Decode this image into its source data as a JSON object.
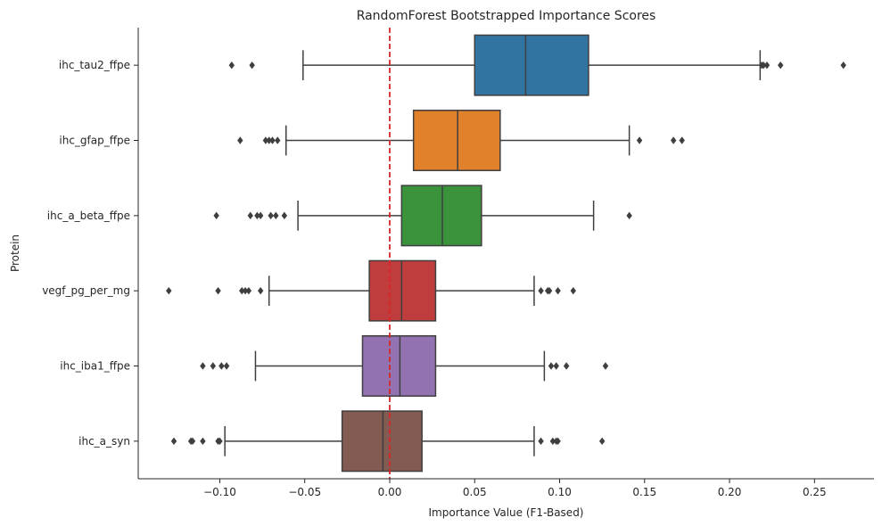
{
  "chart_data": {
    "type": "boxplot",
    "orientation": "horizontal",
    "title": "RandomForest Bootstrapped Importance Scores",
    "xlabel": "Importance Value (F1-Based)",
    "ylabel": "Protein",
    "xlim": [
      -0.148,
      0.285
    ],
    "x_ticks": [
      -0.1,
      -0.05,
      0.0,
      0.05,
      0.1,
      0.15,
      0.2,
      0.25
    ],
    "x_tick_labels": [
      "−0.10",
      "−0.05",
      "0.00",
      "0.05",
      "0.10",
      "0.15",
      "0.20",
      "0.25"
    ],
    "grid": false,
    "reference_line": {
      "x": 0.0,
      "color": "#d62728",
      "style": "dashed"
    },
    "categories": [
      "ihc_tau2_ffpe",
      "ihc_gfap_ffpe",
      "ihc_a_beta_ffpe",
      "vegf_pg_per_mg",
      "ihc_iba1_ffpe",
      "ihc_a_syn"
    ],
    "series": [
      {
        "category": "ihc_tau2_ffpe",
        "color": "#3274a1",
        "whisker_low": -0.051,
        "q1": 0.05,
        "median": 0.08,
        "q3": 0.117,
        "whisker_high": 0.218,
        "outliers": [
          -0.093,
          -0.081,
          0.219,
          0.22,
          0.222,
          0.23,
          0.267
        ]
      },
      {
        "category": "ihc_gfap_ffpe",
        "color": "#e1812c",
        "whisker_low": -0.061,
        "q1": 0.014,
        "median": 0.04,
        "q3": 0.065,
        "whisker_high": 0.141,
        "outliers": [
          -0.088,
          -0.073,
          -0.071,
          -0.069,
          -0.066,
          0.147,
          0.167,
          0.172
        ]
      },
      {
        "category": "ihc_a_beta_ffpe",
        "color": "#3a923a",
        "whisker_low": -0.054,
        "q1": 0.007,
        "median": 0.031,
        "q3": 0.054,
        "whisker_high": 0.12,
        "outliers": [
          -0.102,
          -0.082,
          -0.078,
          -0.076,
          -0.07,
          -0.067,
          -0.062,
          0.141
        ]
      },
      {
        "category": "vegf_pg_per_mg",
        "color": "#c03d3e",
        "whisker_low": -0.071,
        "q1": -0.012,
        "median": 0.007,
        "q3": 0.027,
        "whisker_high": 0.085,
        "outliers": [
          -0.13,
          -0.101,
          -0.087,
          -0.085,
          -0.083,
          -0.076,
          0.089,
          0.093,
          0.094,
          0.099,
          0.108
        ]
      },
      {
        "category": "ihc_iba1_ffpe",
        "color": "#9372b2",
        "whisker_low": -0.079,
        "q1": -0.016,
        "median": 0.006,
        "q3": 0.027,
        "whisker_high": 0.091,
        "outliers": [
          -0.11,
          -0.104,
          -0.099,
          -0.096,
          0.095,
          0.098,
          0.104,
          0.127
        ]
      },
      {
        "category": "ihc_a_syn",
        "color": "#845b53",
        "whisker_low": -0.097,
        "q1": -0.028,
        "median": -0.004,
        "q3": 0.019,
        "whisker_high": 0.085,
        "outliers": [
          -0.127,
          -0.117,
          -0.116,
          -0.11,
          -0.101,
          -0.1,
          0.089,
          0.096,
          0.098,
          0.099,
          0.125
        ]
      }
    ]
  }
}
